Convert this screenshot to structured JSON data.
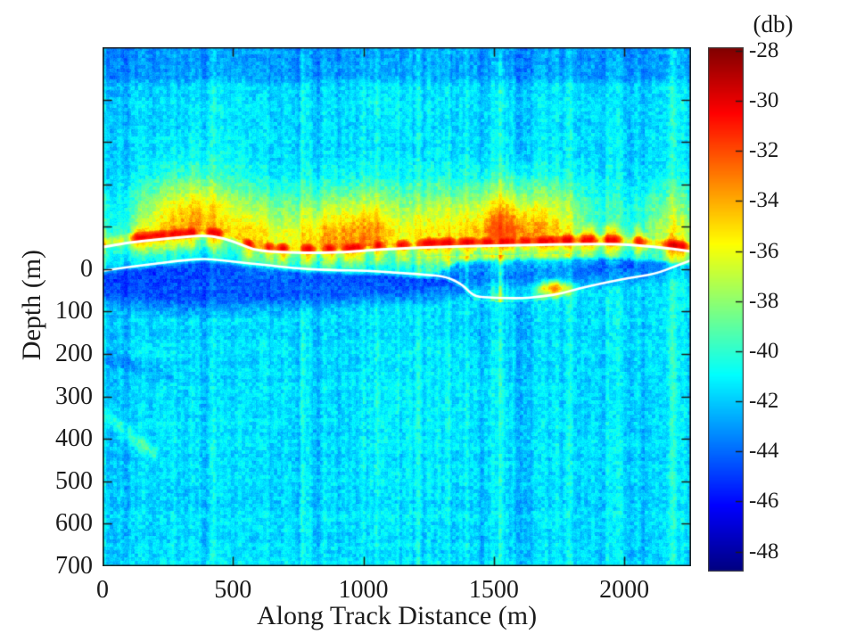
{
  "chart_data": {
    "type": "heatmap",
    "title": "",
    "xlabel": "Along Track Distance (m)",
    "ylabel": "Depth (m)",
    "x_range_m": [
      0,
      2256
    ],
    "x_ticks": [
      0,
      500,
      1000,
      1500,
      2000
    ],
    "y_range_m": [
      -523,
      700
    ],
    "y_ticks": [
      0,
      100,
      200,
      300,
      400,
      500,
      600,
      700
    ],
    "y_minor_ticks": [
      -400,
      -300,
      -200,
      -100
    ],
    "grid": false,
    "colorbar": {
      "label": "(db)",
      "colormap": "jet",
      "vmin": -48.8,
      "vmax": -27.86,
      "ticks": [
        -28,
        -30,
        -32,
        -34,
        -36,
        -38,
        -40,
        -42,
        -44,
        -46,
        -48
      ]
    },
    "noise_floor_db": -41.6,
    "top_band_darken_db": 1.25,
    "surface_pick_line_m": [
      [
        0,
        -52
      ],
      [
        100,
        -63
      ],
      [
        200,
        -69
      ],
      [
        285,
        -74
      ],
      [
        385,
        -80
      ],
      [
        460,
        -74
      ],
      [
        535,
        -57
      ],
      [
        590,
        -44
      ],
      [
        685,
        -40
      ],
      [
        800,
        -38
      ],
      [
        930,
        -40
      ],
      [
        1050,
        -46
      ],
      [
        1130,
        -48
      ],
      [
        1300,
        -53
      ],
      [
        1470,
        -55
      ],
      [
        1640,
        -57
      ],
      [
        1810,
        -59
      ],
      [
        1980,
        -59
      ],
      [
        2120,
        -53
      ],
      [
        2256,
        -42
      ]
    ],
    "layer_pick_line_m": [
      [
        0,
        4
      ],
      [
        85,
        -4
      ],
      [
        180,
        -11
      ],
      [
        280,
        -19
      ],
      [
        385,
        -25
      ],
      [
        460,
        -21
      ],
      [
        535,
        -15
      ],
      [
        615,
        -11
      ],
      [
        730,
        -2
      ],
      [
        865,
        2
      ],
      [
        1025,
        4
      ],
      [
        1120,
        8
      ],
      [
        1240,
        13
      ],
      [
        1315,
        17
      ],
      [
        1380,
        36
      ],
      [
        1420,
        63
      ],
      [
        1470,
        67
      ],
      [
        1605,
        69
      ],
      [
        1675,
        65
      ],
      [
        1745,
        59
      ],
      [
        1835,
        44
      ],
      [
        1925,
        32
      ],
      [
        2015,
        21
      ],
      [
        2120,
        11
      ],
      [
        2200,
        -8
      ],
      [
        2256,
        -21
      ]
    ],
    "dark_layer_bottom_m": [
      [
        0,
        100
      ],
      [
        300,
        122
      ],
      [
        600,
        115
      ],
      [
        900,
        105
      ],
      [
        1200,
        95
      ],
      [
        1350,
        80
      ],
      [
        1500,
        70
      ],
      [
        1700,
        66
      ],
      [
        1900,
        50
      ],
      [
        2100,
        35
      ],
      [
        2256,
        25
      ]
    ],
    "surface_blobs_x_w_amp": [
      [
        150,
        40,
        12
      ],
      [
        205,
        50,
        13
      ],
      [
        290,
        45,
        12
      ],
      [
        335,
        30,
        11
      ],
      [
        430,
        40,
        12
      ],
      [
        560,
        30,
        8
      ],
      [
        640,
        25,
        7
      ],
      [
        690,
        30,
        9
      ],
      [
        790,
        35,
        8
      ],
      [
        870,
        30,
        9
      ],
      [
        960,
        45,
        13
      ],
      [
        1060,
        30,
        8
      ],
      [
        1150,
        30,
        9
      ],
      [
        1250,
        40,
        12
      ],
      [
        1320,
        35,
        11
      ],
      [
        1400,
        40,
        12
      ],
      [
        1470,
        35,
        11
      ],
      [
        1550,
        40,
        12
      ],
      [
        1620,
        35,
        11
      ],
      [
        1700,
        45,
        13
      ],
      [
        1780,
        35,
        10
      ],
      [
        1860,
        40,
        11
      ],
      [
        1950,
        35,
        10
      ],
      [
        2060,
        30,
        8
      ],
      [
        2200,
        55,
        13
      ]
    ],
    "plumes_x_w_amp": [
      [
        205,
        70,
        3.5
      ],
      [
        330,
        80,
        3.5
      ],
      [
        430,
        100,
        4
      ],
      [
        560,
        70,
        3
      ],
      [
        690,
        80,
        3.5
      ],
      [
        850,
        70,
        3
      ],
      [
        960,
        110,
        5
      ],
      [
        1050,
        70,
        3
      ],
      [
        1250,
        90,
        4
      ],
      [
        1470,
        100,
        4.5
      ],
      [
        1550,
        80,
        3.5
      ],
      [
        1700,
        110,
        5
      ],
      [
        2200,
        90,
        4
      ]
    ],
    "sub_band_blob": [
      1730,
      45,
      40,
      12,
      8
    ],
    "diag_bright_streak_m": [
      24,
      347,
      195,
      437,
      1.9
    ],
    "diag_dark_streak_m": [
      0,
      206,
      263,
      254,
      1.1
    ],
    "white_line_color": "#ffffff",
    "axis_color": "#1c1c1c",
    "background_color": "#ffffff",
    "seed": 42
  }
}
